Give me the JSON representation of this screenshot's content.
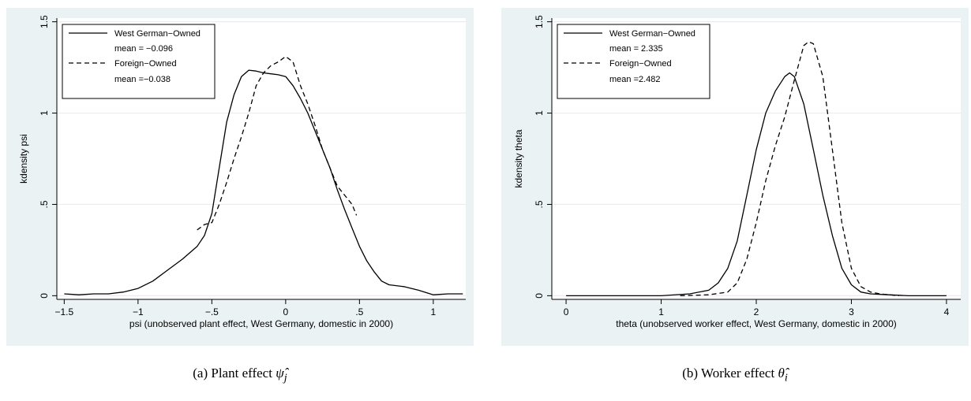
{
  "chart_data": [
    {
      "type": "line",
      "xlabel": "psi (unobserved plant effect, West Germany, domestic in 2000)",
      "ylabel": "kdensity psi",
      "xlim": [
        -1.55,
        1.22
      ],
      "ylim": [
        -0.02,
        1.52
      ],
      "xticks": [
        -1.5,
        -1,
        -0.5,
        0,
        0.5,
        1
      ],
      "xtick_labels": [
        "−1.5",
        "−1",
        "−.5",
        "0",
        ".5",
        "1"
      ],
      "yticks": [
        0,
        0.5,
        1,
        1.5
      ],
      "ytick_labels": [
        "0",
        ".5",
        "1",
        "1.5"
      ],
      "grid": "horizontal",
      "legend": "top-left",
      "legend_entries": [
        "West German−Owned",
        "mean = −0.096",
        "Foreign−Owned",
        "mean =−0.038"
      ],
      "series": [
        {
          "name": "West German−Owned",
          "style": "solid",
          "x": [
            -1.5,
            -1.4,
            -1.3,
            -1.2,
            -1.1,
            -1.0,
            -0.9,
            -0.8,
            -0.7,
            -0.6,
            -0.55,
            -0.5,
            -0.45,
            -0.4,
            -0.35,
            -0.3,
            -0.25,
            -0.2,
            -0.15,
            -0.1,
            -0.05,
            0.0,
            0.05,
            0.1,
            0.15,
            0.2,
            0.25,
            0.3,
            0.35,
            0.4,
            0.45,
            0.5,
            0.55,
            0.6,
            0.65,
            0.7,
            0.8,
            0.9,
            1.0,
            1.1,
            1.2
          ],
          "y": [
            0.01,
            0.005,
            0.01,
            0.01,
            0.02,
            0.04,
            0.08,
            0.14,
            0.2,
            0.27,
            0.33,
            0.45,
            0.7,
            0.95,
            1.1,
            1.2,
            1.235,
            1.23,
            1.22,
            1.215,
            1.21,
            1.2,
            1.15,
            1.08,
            1.0,
            0.9,
            0.8,
            0.7,
            0.58,
            0.47,
            0.37,
            0.27,
            0.19,
            0.13,
            0.08,
            0.06,
            0.05,
            0.03,
            0.005,
            0.01,
            0.01
          ]
        },
        {
          "name": "Foreign−Owned",
          "style": "dashed",
          "x": [
            -0.6,
            -0.55,
            -0.5,
            -0.45,
            -0.4,
            -0.35,
            -0.3,
            -0.25,
            -0.2,
            -0.15,
            -0.1,
            -0.05,
            0.0,
            0.05,
            0.1,
            0.15,
            0.2,
            0.25,
            0.3,
            0.35,
            0.4,
            0.45,
            0.48
          ],
          "y": [
            0.36,
            0.39,
            0.4,
            0.5,
            0.62,
            0.75,
            0.87,
            1.0,
            1.15,
            1.22,
            1.26,
            1.28,
            1.31,
            1.28,
            1.15,
            1.05,
            0.93,
            0.8,
            0.7,
            0.6,
            0.55,
            0.5,
            0.44
          ]
        }
      ]
    },
    {
      "type": "line",
      "xlabel": "theta (unobserved worker effect, West Germany, domestic in 2000)",
      "ylabel": "kdensity theta",
      "xlim": [
        -0.15,
        4.15
      ],
      "ylim": [
        -0.02,
        1.52
      ],
      "xticks": [
        0,
        1,
        2,
        3,
        4
      ],
      "xtick_labels": [
        "0",
        "1",
        "2",
        "3",
        "4"
      ],
      "yticks": [
        0,
        0.5,
        1,
        1.5
      ],
      "ytick_labels": [
        "0",
        ".5",
        "1",
        "1.5"
      ],
      "grid": "horizontal",
      "legend": "top-left",
      "legend_entries": [
        "West German−Owned",
        "mean = 2.335",
        "Foreign−Owned",
        "mean =2.482"
      ],
      "series": [
        {
          "name": "West German−Owned",
          "style": "solid",
          "x": [
            0.0,
            0.5,
            1.0,
            1.3,
            1.5,
            1.6,
            1.7,
            1.8,
            1.9,
            2.0,
            2.1,
            2.2,
            2.3,
            2.35,
            2.4,
            2.5,
            2.6,
            2.7,
            2.8,
            2.9,
            3.0,
            3.1,
            3.2,
            3.4,
            3.6,
            4.0
          ],
          "y": [
            0.0,
            0.0,
            0.0,
            0.01,
            0.03,
            0.07,
            0.15,
            0.3,
            0.55,
            0.8,
            1.0,
            1.12,
            1.2,
            1.22,
            1.2,
            1.05,
            0.8,
            0.55,
            0.33,
            0.15,
            0.06,
            0.02,
            0.01,
            0.005,
            0.0,
            0.0
          ]
        },
        {
          "name": "Foreign−Owned",
          "style": "dashed",
          "x": [
            1.2,
            1.5,
            1.7,
            1.8,
            1.9,
            2.0,
            2.1,
            2.2,
            2.3,
            2.4,
            2.5,
            2.55,
            2.6,
            2.7,
            2.8,
            2.9,
            3.0,
            3.1,
            3.2,
            3.3,
            3.5
          ],
          "y": [
            0.0,
            0.005,
            0.02,
            0.07,
            0.2,
            0.4,
            0.63,
            0.82,
            0.98,
            1.18,
            1.37,
            1.39,
            1.38,
            1.2,
            0.8,
            0.4,
            0.15,
            0.05,
            0.02,
            0.01,
            0.0
          ]
        }
      ]
    }
  ],
  "captions": {
    "a_prefix": "(a) Plant effect ",
    "a_symbol": "ψ̂",
    "a_subscript": "j",
    "b_prefix": "(b) Worker effect ",
    "b_symbol": "θ̂",
    "b_subscript": "i"
  },
  "colors": {
    "panel_bg": "#eaf2f3",
    "plot_bg": "#ffffff",
    "grid": "#e8eef0",
    "line": "#000000"
  }
}
